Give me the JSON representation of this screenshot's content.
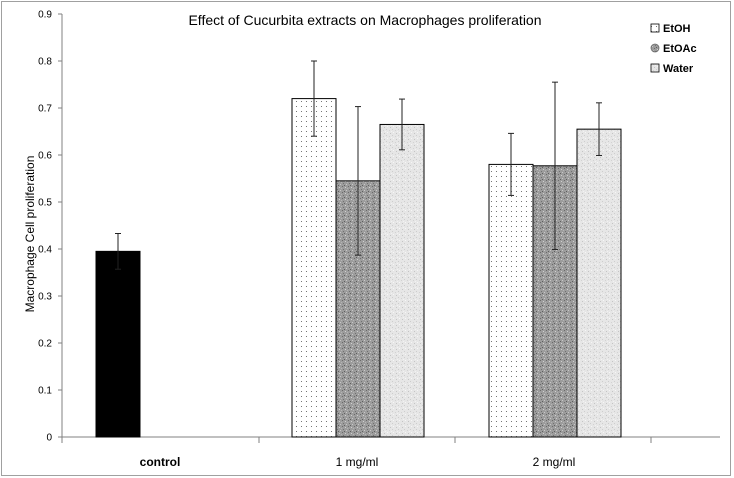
{
  "chart_data": {
    "type": "bar",
    "title": "Effect of Cucurbita extracts on Macrophages proliferation",
    "xlabel": "",
    "ylabel": "Macrophage Cell proliferation",
    "ylim": [
      0,
      0.9
    ],
    "yticks": [
      0,
      0.1,
      0.2,
      0.3,
      0.4,
      0.5,
      0.6,
      0.7,
      0.8,
      0.9
    ],
    "ytick_labels": [
      "0",
      "0.1",
      "0.2",
      "0.3",
      "0.4",
      "0.5",
      "0.6",
      "0.7",
      "0.8",
      "0.9"
    ],
    "grid": false,
    "legend_position": "top-right",
    "categories": [
      "control",
      "1 mg/ml",
      "2 mg/ml"
    ],
    "control": {
      "value": 0.395,
      "error": 0.038,
      "color": "#000000"
    },
    "series": [
      {
        "name": "EtOH",
        "values": [
          null,
          0.72,
          0.58
        ],
        "errors": [
          null,
          0.08,
          0.066
        ],
        "pattern": "dots"
      },
      {
        "name": "EtOAc",
        "values": [
          null,
          0.545,
          0.577
        ],
        "errors": [
          null,
          0.158,
          0.178
        ],
        "pattern": "dark-speckle"
      },
      {
        "name": "Water",
        "values": [
          null,
          0.665,
          0.655
        ],
        "errors": [
          null,
          0.054,
          0.056
        ],
        "pattern": "light-speckle"
      }
    ]
  }
}
